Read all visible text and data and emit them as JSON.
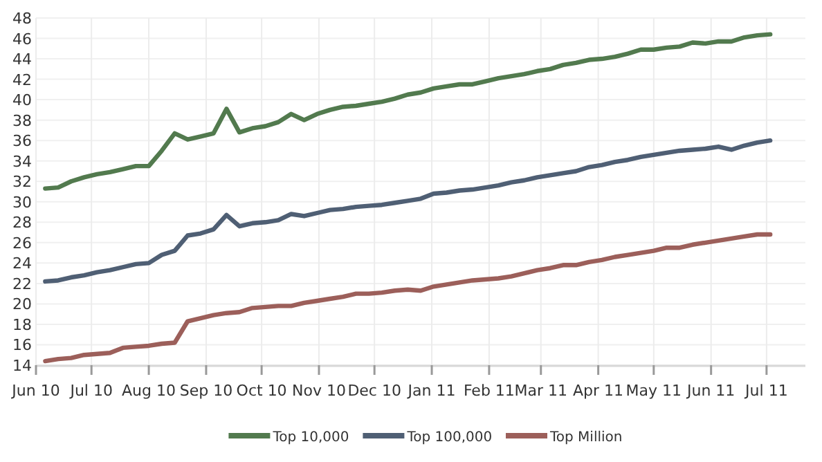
{
  "chart_data": {
    "type": "line",
    "x": [
      "2010-06-06",
      "2010-06-13",
      "2010-06-20",
      "2010-06-27",
      "2010-07-04",
      "2010-07-11",
      "2010-07-18",
      "2010-07-25",
      "2010-08-01",
      "2010-08-08",
      "2010-08-15",
      "2010-08-22",
      "2010-08-29",
      "2010-09-05",
      "2010-09-12",
      "2010-09-19",
      "2010-09-26",
      "2010-10-03",
      "2010-10-10",
      "2010-10-17",
      "2010-10-24",
      "2010-10-31",
      "2010-11-07",
      "2010-11-14",
      "2010-11-21",
      "2010-11-28",
      "2010-12-05",
      "2010-12-12",
      "2010-12-19",
      "2010-12-26",
      "2011-01-02",
      "2011-01-09",
      "2011-01-16",
      "2011-01-23",
      "2011-01-30",
      "2011-02-06",
      "2011-02-13",
      "2011-02-20",
      "2011-02-27",
      "2011-03-06",
      "2011-03-13",
      "2011-03-20",
      "2011-03-27",
      "2011-04-03",
      "2011-04-10",
      "2011-04-17",
      "2011-04-24",
      "2011-05-01",
      "2011-05-08",
      "2011-05-15",
      "2011-05-22",
      "2011-05-29",
      "2011-06-05",
      "2011-06-12",
      "2011-06-19",
      "2011-06-26",
      "2011-07-03"
    ],
    "series": [
      {
        "name": "Top 10,000",
        "color": "#527a4e",
        "values": [
          31.3,
          31.4,
          32.0,
          32.4,
          32.7,
          32.9,
          33.2,
          33.5,
          33.5,
          35.0,
          36.7,
          36.1,
          36.4,
          36.7,
          39.1,
          36.8,
          37.2,
          37.4,
          37.8,
          38.6,
          38.0,
          38.6,
          39.0,
          39.3,
          39.4,
          39.6,
          39.8,
          40.1,
          40.5,
          40.7,
          41.1,
          41.3,
          41.5,
          41.5,
          41.8,
          42.1,
          42.3,
          42.5,
          42.8,
          43.0,
          43.4,
          43.6,
          43.9,
          44.0,
          44.2,
          44.5,
          44.9,
          44.9,
          45.1,
          45.2,
          45.6,
          45.5,
          45.7,
          45.7,
          46.1,
          46.3,
          46.4
        ]
      },
      {
        "name": "Top 100,000",
        "color": "#4f5f74",
        "values": [
          22.2,
          22.3,
          22.6,
          22.8,
          23.1,
          23.3,
          23.6,
          23.9,
          24.0,
          24.8,
          25.2,
          26.7,
          26.9,
          27.3,
          28.7,
          27.6,
          27.9,
          28.0,
          28.2,
          28.8,
          28.6,
          28.9,
          29.2,
          29.3,
          29.5,
          29.6,
          29.7,
          29.9,
          30.1,
          30.3,
          30.8,
          30.9,
          31.1,
          31.2,
          31.4,
          31.6,
          31.9,
          32.1,
          32.4,
          32.6,
          32.8,
          33.0,
          33.4,
          33.6,
          33.9,
          34.1,
          34.4,
          34.6,
          34.8,
          35.0,
          35.1,
          35.2,
          35.4,
          35.1,
          35.5,
          35.8,
          36.0
        ]
      },
      {
        "name": "Top Million",
        "color": "#9c5f5a",
        "values": [
          14.4,
          14.6,
          14.7,
          15.0,
          15.1,
          15.2,
          15.7,
          15.8,
          15.9,
          16.1,
          16.2,
          18.3,
          18.6,
          18.9,
          19.1,
          19.2,
          19.6,
          19.7,
          19.8,
          19.8,
          20.1,
          20.3,
          20.5,
          20.7,
          21.0,
          21.0,
          21.1,
          21.3,
          21.4,
          21.3,
          21.7,
          21.9,
          22.1,
          22.3,
          22.4,
          22.5,
          22.7,
          23.0,
          23.3,
          23.5,
          23.8,
          23.8,
          24.1,
          24.3,
          24.6,
          24.8,
          25.0,
          25.2,
          25.5,
          25.5,
          25.8,
          26.0,
          26.2,
          26.4,
          26.6,
          26.8,
          26.8
        ]
      }
    ],
    "xlim": [
      "2010-06-01",
      "2011-07-22"
    ],
    "xticks": [
      {
        "value": "2010-06-01",
        "label": "Jun 10"
      },
      {
        "value": "2010-07-01",
        "label": "Jul 10"
      },
      {
        "value": "2010-08-01",
        "label": "Aug 10"
      },
      {
        "value": "2010-09-01",
        "label": "Sep 10"
      },
      {
        "value": "2010-10-01",
        "label": "Oct 10"
      },
      {
        "value": "2010-11-01",
        "label": "Nov 10"
      },
      {
        "value": "2010-12-01",
        "label": "Dec 10"
      },
      {
        "value": "2011-01-01",
        "label": "Jan 11"
      },
      {
        "value": "2011-02-01",
        "label": "Feb 11"
      },
      {
        "value": "2011-03-01",
        "label": "Mar 11"
      },
      {
        "value": "2011-04-01",
        "label": "Apr 11"
      },
      {
        "value": "2011-05-01",
        "label": "May 11"
      },
      {
        "value": "2011-06-01",
        "label": "Jun 11"
      },
      {
        "value": "2011-07-01",
        "label": "Jul 11"
      }
    ],
    "ylim": [
      14,
      48
    ],
    "yticks": [
      14,
      16,
      18,
      20,
      22,
      24,
      26,
      28,
      30,
      32,
      34,
      36,
      38,
      40,
      42,
      44,
      46,
      48
    ],
    "grid": true,
    "legend": "bottom",
    "marker": "none",
    "line_style": "solid"
  }
}
